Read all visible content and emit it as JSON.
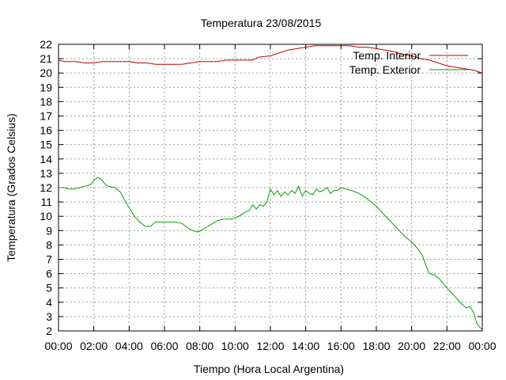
{
  "chart_data": {
    "type": "line",
    "title": "Temperatura 23/08/2015",
    "xlabel": "Tiempo (Hora Local Argentina)",
    "ylabel": "Temperatura (Grados Celsius)",
    "xlim": [
      0,
      24
    ],
    "ylim": [
      2,
      22
    ],
    "x_ticks": [
      "00:00",
      "02:00",
      "04:00",
      "06:00",
      "08:00",
      "10:00",
      "12:00",
      "14:00",
      "16:00",
      "18:00",
      "20:00",
      "22:00",
      "00:00"
    ],
    "y_ticks": [
      "2",
      "3",
      "4",
      "5",
      "6",
      "7",
      "8",
      "9",
      "10",
      "11",
      "12",
      "13",
      "14",
      "15",
      "16",
      "17",
      "18",
      "19",
      "20",
      "21",
      "22"
    ],
    "grid": true,
    "legend_position": "top-right",
    "series": [
      {
        "name": "Temp. Interior",
        "color": "#c00000",
        "points": [
          [
            0,
            20.9
          ],
          [
            0.3,
            20.8
          ],
          [
            1.0,
            20.8
          ],
          [
            1.5,
            20.7
          ],
          [
            2.0,
            20.7
          ],
          [
            2.5,
            20.8
          ],
          [
            3.0,
            20.8
          ],
          [
            4.0,
            20.8
          ],
          [
            4.5,
            20.7
          ],
          [
            5.0,
            20.7
          ],
          [
            5.5,
            20.6
          ],
          [
            6.0,
            20.6
          ],
          [
            7.0,
            20.6
          ],
          [
            7.5,
            20.7
          ],
          [
            8.0,
            20.8
          ],
          [
            9.0,
            20.8
          ],
          [
            9.5,
            20.9
          ],
          [
            10.0,
            20.9
          ],
          [
            11.0,
            20.9
          ],
          [
            11.3,
            21.1
          ],
          [
            12.0,
            21.2
          ],
          [
            12.5,
            21.4
          ],
          [
            13.0,
            21.6
          ],
          [
            13.5,
            21.7
          ],
          [
            14.0,
            21.8
          ],
          [
            14.5,
            21.9
          ],
          [
            15.0,
            21.9
          ],
          [
            16.0,
            21.9
          ],
          [
            16.5,
            21.9
          ],
          [
            17.0,
            21.8
          ],
          [
            17.5,
            21.8
          ],
          [
            18.0,
            21.7
          ],
          [
            18.5,
            21.6
          ],
          [
            19.0,
            21.5
          ],
          [
            19.5,
            21.3
          ],
          [
            20.0,
            21.2
          ],
          [
            20.5,
            21.0
          ],
          [
            21.0,
            20.9
          ],
          [
            21.5,
            20.7
          ],
          [
            22.0,
            20.5
          ],
          [
            22.5,
            20.4
          ],
          [
            23.0,
            20.3
          ],
          [
            23.5,
            20.2
          ],
          [
            24.0,
            20.0
          ]
        ]
      },
      {
        "name": "Temp. Exterior",
        "color": "#00a000",
        "points": [
          [
            0,
            12.0
          ],
          [
            0.3,
            12.0
          ],
          [
            0.6,
            11.9
          ],
          [
            0.9,
            11.9
          ],
          [
            1.2,
            12.0
          ],
          [
            1.5,
            12.1
          ],
          [
            1.8,
            12.2
          ],
          [
            2.0,
            12.5
          ],
          [
            2.2,
            12.7
          ],
          [
            2.4,
            12.6
          ],
          [
            2.6,
            12.3
          ],
          [
            2.8,
            12.1
          ],
          [
            3.2,
            12.0
          ],
          [
            3.5,
            11.7
          ],
          [
            3.8,
            11.0
          ],
          [
            4.0,
            10.6
          ],
          [
            4.3,
            10.0
          ],
          [
            4.6,
            9.6
          ],
          [
            4.9,
            9.3
          ],
          [
            5.2,
            9.3
          ],
          [
            5.5,
            9.6
          ],
          [
            5.8,
            9.6
          ],
          [
            6.2,
            9.6
          ],
          [
            6.6,
            9.6
          ],
          [
            7.0,
            9.5
          ],
          [
            7.3,
            9.2
          ],
          [
            7.6,
            9.0
          ],
          [
            7.9,
            8.9
          ],
          [
            8.2,
            9.1
          ],
          [
            8.6,
            9.4
          ],
          [
            9.0,
            9.7
          ],
          [
            9.4,
            9.8
          ],
          [
            9.8,
            9.8
          ],
          [
            10.2,
            10.0
          ],
          [
            10.6,
            10.3
          ],
          [
            10.8,
            10.4
          ],
          [
            11.0,
            10.8
          ],
          [
            11.2,
            10.5
          ],
          [
            11.4,
            10.8
          ],
          [
            11.6,
            10.7
          ],
          [
            11.8,
            11.0
          ],
          [
            12.0,
            11.9
          ],
          [
            12.2,
            11.5
          ],
          [
            12.4,
            11.8
          ],
          [
            12.6,
            11.4
          ],
          [
            12.8,
            11.7
          ],
          [
            13.0,
            11.5
          ],
          [
            13.2,
            11.8
          ],
          [
            13.4,
            11.6
          ],
          [
            13.6,
            12.1
          ],
          [
            13.8,
            11.4
          ],
          [
            14.0,
            11.8
          ],
          [
            14.2,
            11.6
          ],
          [
            14.4,
            11.5
          ],
          [
            14.6,
            11.9
          ],
          [
            14.8,
            11.7
          ],
          [
            15.0,
            11.8
          ],
          [
            15.2,
            12.0
          ],
          [
            15.4,
            11.6
          ],
          [
            15.6,
            11.8
          ],
          [
            15.8,
            11.8
          ],
          [
            16.0,
            12.0
          ],
          [
            16.3,
            11.9
          ],
          [
            16.6,
            11.8
          ],
          [
            17.0,
            11.6
          ],
          [
            17.3,
            11.4
          ],
          [
            17.6,
            11.1
          ],
          [
            18.0,
            10.7
          ],
          [
            18.3,
            10.3
          ],
          [
            18.6,
            9.9
          ],
          [
            19.0,
            9.4
          ],
          [
            19.3,
            9.0
          ],
          [
            19.6,
            8.6
          ],
          [
            20.0,
            8.2
          ],
          [
            20.3,
            7.8
          ],
          [
            20.6,
            7.3
          ],
          [
            20.8,
            6.6
          ],
          [
            21.0,
            6.0
          ],
          [
            21.3,
            5.9
          ],
          [
            21.6,
            5.6
          ],
          [
            22.0,
            5.0
          ],
          [
            22.3,
            4.6
          ],
          [
            22.6,
            4.2
          ],
          [
            22.9,
            3.8
          ],
          [
            23.1,
            3.6
          ],
          [
            23.3,
            3.7
          ],
          [
            23.5,
            3.3
          ],
          [
            23.7,
            2.5
          ],
          [
            23.9,
            2.2
          ],
          [
            24.0,
            2.1
          ]
        ]
      }
    ]
  }
}
